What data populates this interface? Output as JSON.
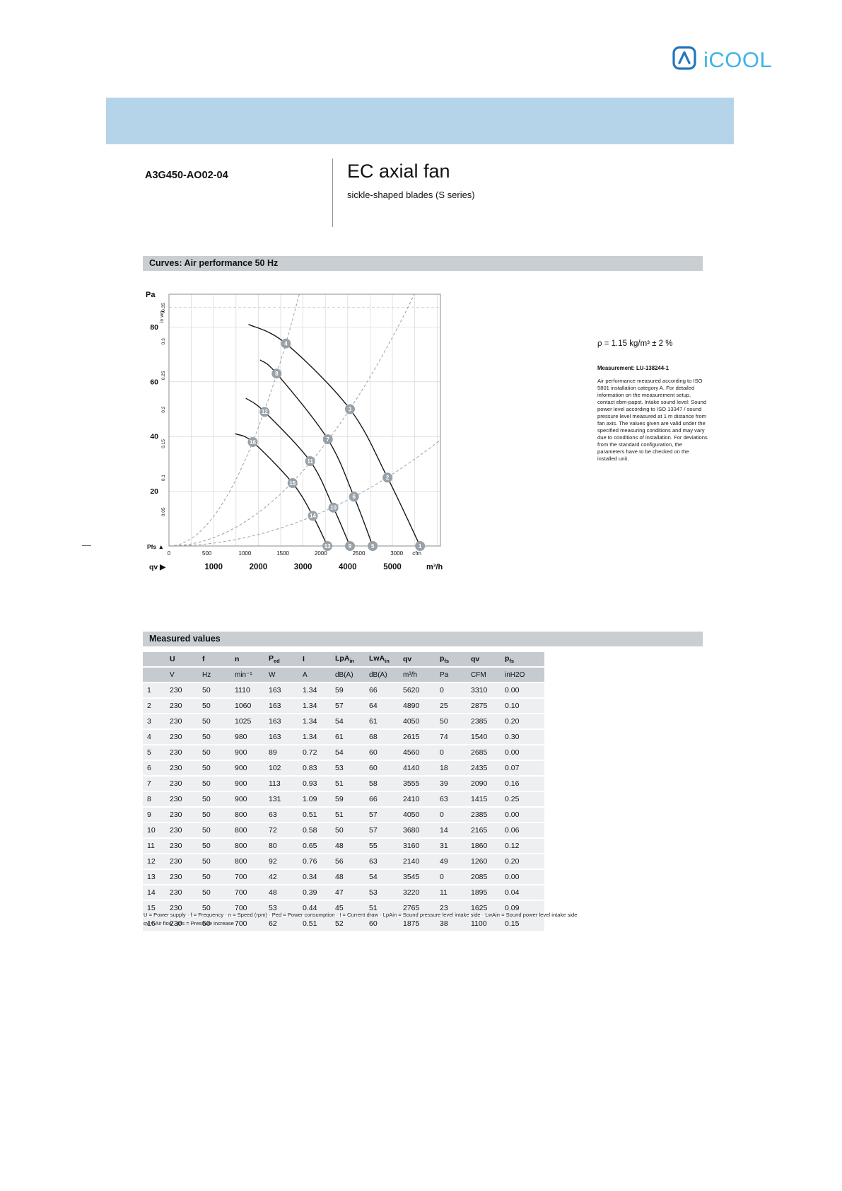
{
  "page": {
    "logo": {
      "text": "iCOOL"
    },
    "header": {
      "part_number": "A3G450-AO02-04",
      "title": "EC axial fan",
      "subtitle": "sickle-shaped blades (S series)"
    },
    "curves_section": {
      "title": "Curves: Air performance 50 Hz",
      "density": "ρ = 1.15 kg/m³ ± 2 %",
      "measurement": "Measurement: LU-138244-1",
      "note": "Air performance measured according to ISO 5801 installation category A. For detailed information on the measurement setup, contact ebm-papst. Intake sound level: Sound power level according to ISO 13347 / sound pressure level measured at 1 m distance from fan axis. The values given are valid under the specified measuring conditions and may vary due to conditions of installation. For deviations from the standard configuration, the parameters have to be checked on the installed unit."
    },
    "measured_section": {
      "title": "Measured values"
    }
  },
  "chart_data": {
    "type": "line",
    "title": "Curves: Air performance 50 Hz",
    "x": {
      "unit_primary": "m³/h",
      "unit_secondary": "cfm",
      "axis_label": "qv",
      "m3h_labels": [
        1000,
        2000,
        3000,
        4000,
        5000
      ],
      "cfm_ticks": [
        0,
        500,
        1000,
        1500,
        2000,
        2500,
        3000
      ],
      "max_m3h": 6075,
      "m3h_per_cfm": 1.699
    },
    "y": {
      "unit_primary": "Pa",
      "unit_secondary": "in wg",
      "axis_label": "Pfs",
      "pa_ticks": [
        20,
        40,
        60,
        80
      ],
      "inwg_ticks": [
        0.05,
        0.1,
        0.15,
        0.2,
        0.25,
        0.3,
        0.35
      ],
      "max_pa": 92,
      "pa_per_inwg": 249.09
    },
    "series": [
      {
        "name": "fan-curve-a",
        "start": [
          1780,
          81
        ],
        "points": [
          {
            "label": "4",
            "qv": 2615,
            "pfs": 74
          },
          {
            "label": "3",
            "qv": 4050,
            "pfs": 50
          },
          {
            "label": "2",
            "qv": 4890,
            "pfs": 25
          },
          {
            "label": "1",
            "qv": 5620,
            "pfs": 0
          }
        ]
      },
      {
        "name": "fan-curve-b",
        "start": [
          2040,
          68
        ],
        "points": [
          {
            "label": "8",
            "qv": 2410,
            "pfs": 63
          },
          {
            "label": "7",
            "qv": 3555,
            "pfs": 39
          },
          {
            "label": "6",
            "qv": 4140,
            "pfs": 18
          },
          {
            "label": "5",
            "qv": 4560,
            "pfs": 0
          }
        ]
      },
      {
        "name": "fan-curve-c",
        "start": [
          1720,
          54
        ],
        "points": [
          {
            "label": "12",
            "qv": 2140,
            "pfs": 49
          },
          {
            "label": "11",
            "qv": 3160,
            "pfs": 31
          },
          {
            "label": "10",
            "qv": 3680,
            "pfs": 14
          },
          {
            "label": "9",
            "qv": 4050,
            "pfs": 0
          }
        ]
      },
      {
        "name": "fan-curve-d",
        "start": [
          1480,
          41
        ],
        "points": [
          {
            "label": "16",
            "qv": 1875,
            "pfs": 38
          },
          {
            "label": "15",
            "qv": 2765,
            "pfs": 23
          },
          {
            "label": "14",
            "qv": 3220,
            "pfs": 11
          },
          {
            "label": "13",
            "qv": 3545,
            "pfs": 0
          }
        ]
      }
    ],
    "system_curves": [
      {
        "k": 1.082e-05
      },
      {
        "k": 3.05e-06
      },
      {
        "k": 1.05e-06
      }
    ]
  },
  "table": {
    "columns": [
      {
        "base": "",
        "sub": "",
        "unit": ""
      },
      {
        "base": "U",
        "sub": "",
        "unit": "V"
      },
      {
        "base": "f",
        "sub": "",
        "unit": "Hz"
      },
      {
        "base": "n",
        "sub": "",
        "unit": "min⁻¹"
      },
      {
        "base": "P",
        "sub": "ed",
        "unit": "W"
      },
      {
        "base": "I",
        "sub": "",
        "unit": "A"
      },
      {
        "base": "LpA",
        "sub": "in",
        "unit": "dB(A)"
      },
      {
        "base": "LwA",
        "sub": "in",
        "unit": "dB(A)"
      },
      {
        "base": "qv",
        "sub": "",
        "unit": "m³/h"
      },
      {
        "base": "p",
        "sub": "fs",
        "unit": "Pa"
      },
      {
        "base": "qv",
        "sub": "",
        "unit": "CFM"
      },
      {
        "base": "p",
        "sub": "fs",
        "unit": "inH2O"
      }
    ],
    "rows": [
      [
        "1",
        "230",
        "50",
        "1110",
        "163",
        "1.34",
        "59",
        "66",
        "5620",
        "0",
        "3310",
        "0.00"
      ],
      [
        "2",
        "230",
        "50",
        "1060",
        "163",
        "1.34",
        "57",
        "64",
        "4890",
        "25",
        "2875",
        "0.10"
      ],
      [
        "3",
        "230",
        "50",
        "1025",
        "163",
        "1.34",
        "54",
        "61",
        "4050",
        "50",
        "2385",
        "0.20"
      ],
      [
        "4",
        "230",
        "50",
        "980",
        "163",
        "1.34",
        "61",
        "68",
        "2615",
        "74",
        "1540",
        "0.30"
      ],
      [
        "5",
        "230",
        "50",
        "900",
        "89",
        "0.72",
        "54",
        "60",
        "4560",
        "0",
        "2685",
        "0.00"
      ],
      [
        "6",
        "230",
        "50",
        "900",
        "102",
        "0.83",
        "53",
        "60",
        "4140",
        "18",
        "2435",
        "0.07"
      ],
      [
        "7",
        "230",
        "50",
        "900",
        "113",
        "0.93",
        "51",
        "58",
        "3555",
        "39",
        "2090",
        "0.16"
      ],
      [
        "8",
        "230",
        "50",
        "900",
        "131",
        "1.09",
        "59",
        "66",
        "2410",
        "63",
        "1415",
        "0.25"
      ],
      [
        "9",
        "230",
        "50",
        "800",
        "63",
        "0.51",
        "51",
        "57",
        "4050",
        "0",
        "2385",
        "0.00"
      ],
      [
        "10",
        "230",
        "50",
        "800",
        "72",
        "0.58",
        "50",
        "57",
        "3680",
        "14",
        "2165",
        "0.06"
      ],
      [
        "11",
        "230",
        "50",
        "800",
        "80",
        "0.65",
        "48",
        "55",
        "3160",
        "31",
        "1860",
        "0.12"
      ],
      [
        "12",
        "230",
        "50",
        "800",
        "92",
        "0.76",
        "56",
        "63",
        "2140",
        "49",
        "1260",
        "0.20"
      ],
      [
        "13",
        "230",
        "50",
        "700",
        "42",
        "0.34",
        "48",
        "54",
        "3545",
        "0",
        "2085",
        "0.00"
      ],
      [
        "14",
        "230",
        "50",
        "700",
        "48",
        "0.39",
        "47",
        "53",
        "3220",
        "11",
        "1895",
        "0.04"
      ],
      [
        "15",
        "230",
        "50",
        "700",
        "53",
        "0.44",
        "45",
        "51",
        "2765",
        "23",
        "1625",
        "0.09"
      ],
      [
        "16",
        "230",
        "50",
        "700",
        "62",
        "0.51",
        "52",
        "60",
        "1875",
        "38",
        "1100",
        "0.15"
      ]
    ],
    "footnotes": [
      "U = Power supply · f = Frequency · n = Speed (rpm) · Ped = Power consumption · I = Current draw · LpAin = Sound pressure level intake side · LwAin = Sound power level intake side",
      "qv = Air flow · pfs = Pressure increase"
    ]
  }
}
